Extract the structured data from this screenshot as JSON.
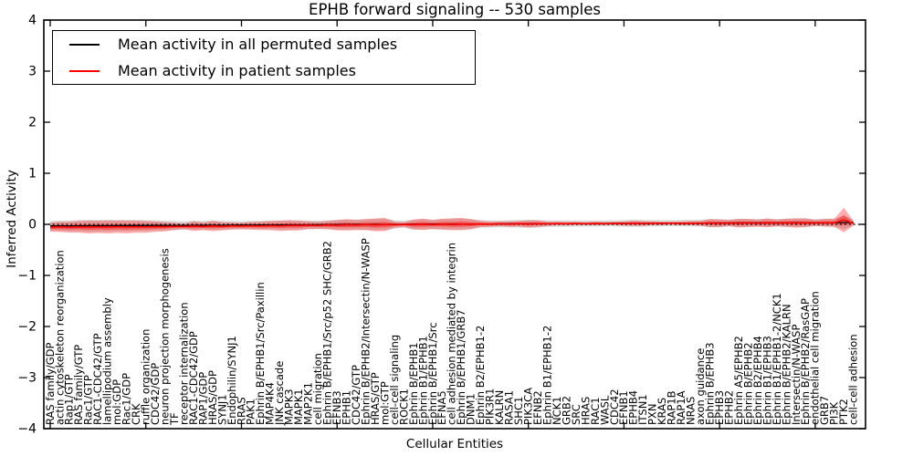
{
  "figure": {
    "title": "EPHB forward signaling -- 530 samples",
    "xlabel": "Cellular Entities",
    "ylabel": "Inferred Activity"
  },
  "legend": {
    "entries": [
      {
        "label": "Mean activity in all permuted samples",
        "color": "#000000"
      },
      {
        "label": "Mean activity in patient samples",
        "color": "#ff0000"
      }
    ]
  },
  "chart_data": {
    "type": "line",
    "title": "EPHB forward signaling -- 530 samples",
    "xlabel": "Cellular Entities",
    "ylabel": "Inferred Activity",
    "ylim": [
      -4,
      4
    ],
    "yticks": [
      4,
      3,
      2,
      1,
      0,
      -1,
      -2,
      -3,
      -4
    ],
    "x_major_ticks": [
      0,
      10,
      20,
      30,
      40,
      50,
      60,
      70,
      80
    ],
    "grid": false,
    "zero_line_style": "dotted",
    "legend_position": "upper left",
    "colors": {
      "permuted_line": "#000000",
      "patient_line": "#ff0000",
      "permuted_band": "rgba(0,0,0,0.14)",
      "patient_band": "rgba(255,0,0,0.32)",
      "patient_band_core": "rgba(255,0,0,0.38)",
      "frame": "#000000"
    },
    "categories": [
      "RAS family/GDP",
      "actin cytoskeleton reorganization",
      "Rap1/GTP",
      "RAS family/GTP",
      "Rac1/GTP",
      "RAC1-CDC42/GTP",
      "lamellipodium assembly",
      "mol:GDP",
      "Rac1/GDP",
      "CRK",
      "ruffle organization",
      "CDC42/GDP",
      "neuron projection morphogenesis",
      "TF",
      "receptor internalization",
      "RAC1-CDC42/GDP",
      "RAP1/GDP",
      "HRAS/GDP",
      "SYNJ1",
      "Endophilin/SYNJ1",
      "RRAS",
      "PAK1",
      "Ephrin B/EPHB1/Src/Paxillin",
      "MAP4K4",
      "JNK cascade",
      "MAPK3",
      "MAPK1",
      "MAP2K1",
      "cell migration",
      "Ephrin B/EPHB1/Src/p52 SHC/GRB2",
      "EFNB3",
      "EPHB1",
      "CDC42/GTP",
      "Ephrin B/EPHB2/Intersectin/N-WASP",
      "HRAS/GTP",
      "mol:GTP",
      "cell-cell signaling",
      "ROCK1",
      "Ephrin B/EPHB1",
      "Ephrin B1/EPHB1",
      "Ephrin B/EPHB1/Src",
      "EFNA5",
      "cell adhesion mediated by integrin",
      "Ephrin B/EPHB1/GRB7",
      "DNM1",
      "Ephrin B2/EPHB1-2",
      "PIK3R1",
      "KALRN",
      "RASA1",
      "SHC1",
      "PIK3CA",
      "EFNB2",
      "Ephrin B1/EPHB1-2",
      "NCK1",
      "GRB2",
      "SRC",
      "HRAS",
      "RAC1",
      "WASL",
      "CDC42",
      "EFNB1",
      "EPHB4",
      "ITSN1",
      "PXN",
      "KRAS",
      "RAP1B",
      "RAP1A",
      "NRAS",
      "axon guidance",
      "Ephrin B/EPHB3",
      "EPHB3",
      "EPHB2",
      "Ephrin A5/EPHB2",
      "Ephrin B/EPHB2",
      "Ephrin B2/EPHB4",
      "Ephrin B1/EPHB3",
      "Ephrin B1/EPHB1-2/NCK1",
      "Ephrin B/EPHB2/KALRN",
      "Intersectin/N-WASP",
      "Ephrin B/EPHB2/RasGAP",
      "endothelial cell migration",
      "GRB7",
      "PI3K",
      "PTK2",
      "cell-cell adhesion"
    ],
    "series": [
      {
        "name": "Mean activity in all permuted samples",
        "color": "#000000",
        "values": [
          -0.03,
          -0.029,
          -0.029,
          -0.028,
          -0.027,
          -0.027,
          -0.026,
          -0.025,
          -0.024,
          -0.024,
          -0.023,
          -0.022,
          -0.021,
          -0.021,
          -0.02,
          -0.019,
          -0.018,
          -0.017,
          -0.017,
          -0.016,
          -0.015,
          -0.014,
          -0.013,
          -0.012,
          -0.011,
          -0.011,
          -0.01,
          -0.009,
          -0.008,
          -0.007,
          -0.006,
          -0.005,
          -0.004,
          -0.003,
          -0.002,
          -0.001,
          0.0,
          0.0,
          0.001,
          0.002,
          0.003,
          0.004,
          0.005,
          0.006,
          0.007,
          0.007,
          0.008,
          0.009,
          0.01,
          0.01,
          0.011,
          0.012,
          0.013,
          0.013,
          0.014,
          0.015,
          0.016,
          0.016,
          0.017,
          0.018,
          0.019,
          0.019,
          0.02,
          0.021,
          0.022,
          0.022,
          0.023,
          0.024,
          0.025,
          0.025,
          0.026,
          0.027,
          0.028,
          0.028,
          0.029,
          0.03,
          0.03,
          0.031,
          0.032,
          0.032,
          0.033,
          0.034,
          0.034,
          0.035,
          0.035
        ],
        "band_halfwidth": [
          0.095,
          0.1,
          0.105,
          0.11,
          0.115,
          0.115,
          0.115,
          0.112,
          0.112,
          0.11,
          0.105,
          0.1,
          0.095,
          0.085,
          0.08,
          0.085,
          0.085,
          0.09,
          0.085,
          0.08,
          0.078,
          0.08,
          0.082,
          0.085,
          0.09,
          0.09,
          0.088,
          0.082,
          0.08,
          0.085,
          0.095,
          0.1,
          0.1,
          0.105,
          0.11,
          0.11,
          0.08,
          0.07,
          0.095,
          0.1,
          0.092,
          0.1,
          0.105,
          0.108,
          0.095,
          0.075,
          0.07,
          0.068,
          0.07,
          0.072,
          0.078,
          0.075,
          0.065,
          0.062,
          0.062,
          0.06,
          0.058,
          0.06,
          0.058,
          0.06,
          0.064,
          0.068,
          0.066,
          0.062,
          0.062,
          0.06,
          0.062,
          0.064,
          0.066,
          0.078,
          0.076,
          0.07,
          0.08,
          0.078,
          0.072,
          0.08,
          0.072,
          0.078,
          0.082,
          0.08,
          0.07,
          0.076,
          0.078,
          0.13,
          0.06
        ]
      },
      {
        "name": "Mean activity in patient samples",
        "color": "#ff0000",
        "values": [
          -0.055,
          -0.05,
          -0.056,
          -0.048,
          -0.054,
          -0.049,
          -0.053,
          -0.047,
          -0.052,
          -0.046,
          -0.05,
          -0.044,
          -0.046,
          -0.04,
          -0.042,
          -0.036,
          -0.04,
          -0.034,
          -0.038,
          -0.032,
          -0.034,
          -0.028,
          -0.031,
          -0.025,
          -0.028,
          -0.022,
          -0.024,
          -0.018,
          -0.021,
          -0.014,
          -0.017,
          -0.01,
          -0.014,
          -0.006,
          -0.011,
          -0.004,
          -0.008,
          -0.002,
          -0.006,
          0.001,
          -0.003,
          0.004,
          0.0,
          0.006,
          0.002,
          0.008,
          0.004,
          0.01,
          0.006,
          0.012,
          0.008,
          0.014,
          0.01,
          0.016,
          0.012,
          0.017,
          0.013,
          0.018,
          0.014,
          0.019,
          0.016,
          0.021,
          0.017,
          0.022,
          0.018,
          0.023,
          0.019,
          0.024,
          0.02,
          0.026,
          0.022,
          0.027,
          0.023,
          0.028,
          0.024,
          0.03,
          0.026,
          0.031,
          0.027,
          0.032,
          0.028,
          0.033,
          0.03,
          0.085,
          0.02
        ],
        "band_halfwidth": [
          0.089,
          0.1,
          0.104,
          0.114,
          0.125,
          0.121,
          0.127,
          0.12,
          0.125,
          0.119,
          0.114,
          0.102,
          0.091,
          0.071,
          0.055,
          0.096,
          0.075,
          0.1,
          0.08,
          0.07,
          0.064,
          0.075,
          0.08,
          0.089,
          0.1,
          0.102,
          0.095,
          0.077,
          0.07,
          0.082,
          0.1,
          0.111,
          0.1,
          0.109,
          0.125,
          0.13,
          0.061,
          0.045,
          0.1,
          0.111,
          0.089,
          0.109,
          0.116,
          0.121,
          0.1,
          0.061,
          0.05,
          0.045,
          0.052,
          0.055,
          0.071,
          0.064,
          0.041,
          0.036,
          0.036,
          0.032,
          0.03,
          0.036,
          0.03,
          0.032,
          0.041,
          0.05,
          0.045,
          0.036,
          0.036,
          0.03,
          0.036,
          0.041,
          0.046,
          0.08,
          0.075,
          0.061,
          0.086,
          0.08,
          0.07,
          0.086,
          0.066,
          0.08,
          0.091,
          0.086,
          0.061,
          0.075,
          0.08,
          0.24,
          0.041
        ]
      }
    ]
  }
}
